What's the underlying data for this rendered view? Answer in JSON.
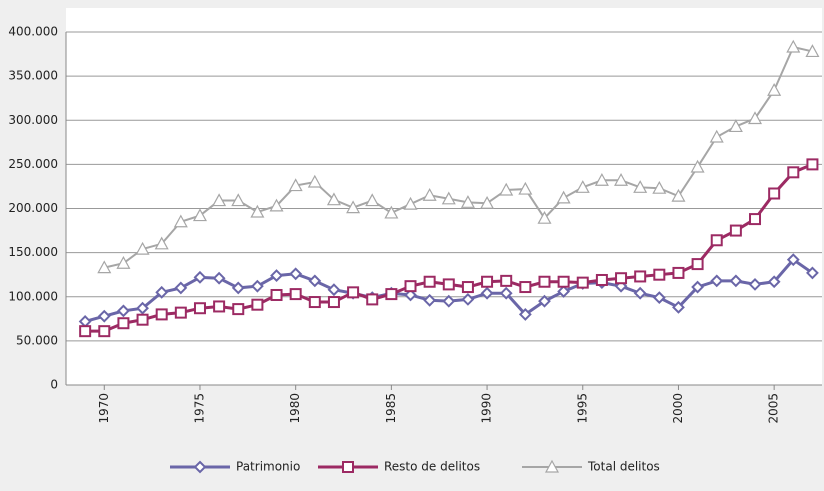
{
  "chart_data": {
    "type": "line",
    "xlim": [
      1968,
      2007.5
    ],
    "xticks": [
      1970,
      1975,
      1980,
      1985,
      1990,
      1995,
      2000,
      2005
    ],
    "ylim": [
      0,
      400000
    ],
    "yticks": [
      0,
      {
        "value": 50000,
        "label": "50.000"
      },
      {
        "value": 100000,
        "label": "100.000"
      },
      {
        "value": 150000,
        "label": "150.000"
      },
      {
        "value": 200000,
        "label": "200.000"
      },
      {
        "value": 250000,
        "label": "250.000"
      },
      {
        "value": 300000,
        "label": "300.000"
      },
      {
        "value": 350000,
        "label": "350.000"
      },
      {
        "value": 400000,
        "label": "400.000"
      }
    ],
    "grid": true,
    "legend": "bottom",
    "series": [
      {
        "name": "Patrimonio",
        "color": "#6a66a8",
        "marker": "diamond",
        "x": [
          1969,
          1970,
          1971,
          1972,
          1973,
          1974,
          1975,
          1976,
          1977,
          1978,
          1979,
          1980,
          1981,
          1982,
          1983,
          1984,
          1985,
          1986,
          1987,
          1988,
          1989,
          1990,
          1991,
          1992,
          1993,
          1994,
          1995,
          1996,
          1997,
          1998,
          1999,
          2000,
          2001,
          2002,
          2003,
          2004,
          2005,
          2006,
          2007
        ],
        "values": [
          72000,
          78000,
          84000,
          87000,
          105000,
          110000,
          122000,
          121000,
          110000,
          112000,
          124000,
          126000,
          118000,
          108000,
          104000,
          99000,
          104000,
          102000,
          96000,
          95000,
          97000,
          104000,
          104000,
          80000,
          95000,
          106000,
          115000,
          116000,
          112000,
          104000,
          99000,
          88000,
          111000,
          118000,
          118000,
          114000,
          117000,
          142000,
          127000
        ]
      },
      {
        "name": "Resto de delitos",
        "color": "#9c2a63",
        "marker": "square",
        "x": [
          1969,
          1970,
          1971,
          1972,
          1973,
          1974,
          1975,
          1976,
          1977,
          1978,
          1979,
          1980,
          1981,
          1982,
          1983,
          1984,
          1985,
          1986,
          1987,
          1988,
          1989,
          1990,
          1991,
          1992,
          1993,
          1994,
          1995,
          1996,
          1997,
          1998,
          1999,
          2000,
          2001,
          2002,
          2003,
          2004,
          2005,
          2006,
          2007
        ],
        "values": [
          61000,
          61000,
          70000,
          74000,
          80000,
          82000,
          87000,
          89000,
          86000,
          91000,
          102000,
          103000,
          94000,
          94000,
          105000,
          97000,
          103000,
          112000,
          117000,
          114000,
          111000,
          117000,
          118000,
          111000,
          117000,
          117000,
          116000,
          119000,
          121000,
          123000,
          125000,
          127000,
          137000,
          164000,
          175000,
          188000,
          217000,
          241000,
          250000
        ]
      },
      {
        "name": "Total delitos",
        "color": "#a6a6a6",
        "marker": "triangle",
        "x": [
          1970,
          1971,
          1972,
          1973,
          1974,
          1975,
          1976,
          1977,
          1978,
          1979,
          1980,
          1981,
          1982,
          1983,
          1984,
          1985,
          1986,
          1987,
          1988,
          1989,
          1990,
          1991,
          1992,
          1993,
          1994,
          1995,
          1996,
          1997,
          1998,
          1999,
          2000,
          2001,
          2002,
          2003,
          2004,
          2005,
          2006,
          2007
        ],
        "values": [
          133000,
          138000,
          154000,
          160000,
          185000,
          192000,
          209000,
          209000,
          196000,
          203000,
          226000,
          230000,
          210000,
          201000,
          209000,
          195000,
          205000,
          215000,
          211000,
          207000,
          206000,
          221000,
          222000,
          189000,
          212000,
          224000,
          232000,
          232000,
          224000,
          223000,
          214000,
          247000,
          281000,
          293000,
          302000,
          334000,
          383000,
          378000
        ]
      }
    ]
  }
}
